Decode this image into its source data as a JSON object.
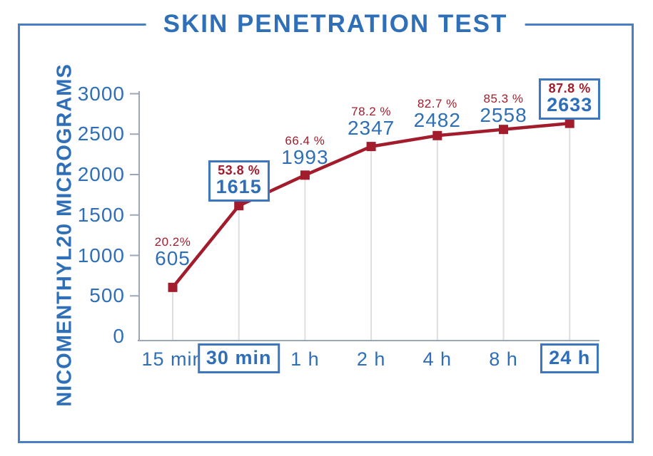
{
  "title": "SKIN PENETRATION TEST",
  "y_axis_label": "NICOMENTHYL20 MICROGRAMS",
  "colors": {
    "blue_text": "#2e6fb7",
    "red_series": "#a21c2c",
    "box_border": "#3b76bf",
    "frame_border": "#4a7ec4",
    "axis": "#9aa7b8",
    "dropline": "#dcdee2"
  },
  "chart_data": {
    "type": "line",
    "title": "SKIN PENETRATION TEST",
    "xlabel": "",
    "ylabel": "NICOMENTHYL20 MICROGRAMS",
    "categories": [
      "15 min",
      "30 min",
      "1 h",
      "2 h",
      "4 h",
      "8 h",
      "24 h"
    ],
    "values": [
      605,
      1615,
      1993,
      2347,
      2482,
      2558,
      2633
    ],
    "percent_labels": [
      "20.2%",
      "53.8 %",
      "66.4 %",
      "78.2 %",
      "82.7 %",
      "85.3 %",
      "87.8 %"
    ],
    "emphasized_indices": [
      1,
      6
    ],
    "y_ticks": [
      0,
      500,
      1000,
      1500,
      2000,
      2500,
      3000
    ],
    "ylim": [
      0,
      3000
    ],
    "marker": "square",
    "grid": "vertical droplines from points only",
    "legend": "none",
    "series_color": "#a21c2c"
  }
}
